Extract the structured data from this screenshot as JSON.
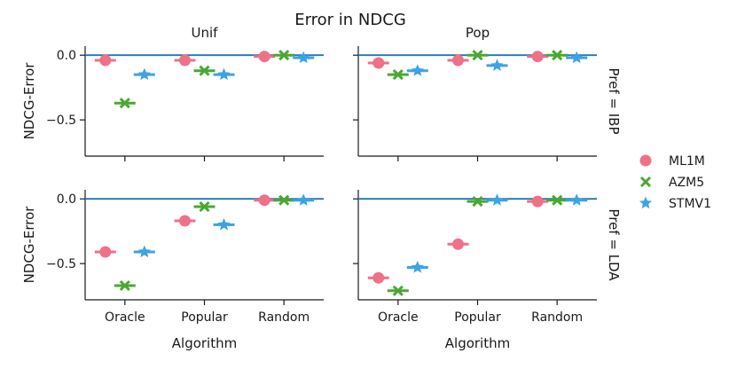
{
  "chart_data": {
    "type": "scatter",
    "title": "Error in NDCG",
    "xlabel": "Algorithm",
    "ylabel": "NDCG-Error",
    "categories": [
      "Oracle",
      "Popular",
      "Random"
    ],
    "ylim": [
      -0.78,
      0.07
    ],
    "yticks": [
      0.0,
      -0.5
    ],
    "ytick_labels": [
      "0.0",
      "−0.5"
    ],
    "columns": [
      "Unif",
      "Pop"
    ],
    "rows": [
      "Pref = IBP",
      "Pref = LDA"
    ],
    "reference_line": 0.0,
    "reference_color": "#1f77b4",
    "legend_position": "right",
    "series": [
      {
        "name": "ML1M",
        "marker": "circle",
        "color": "#f07088"
      },
      {
        "name": "AZM5",
        "marker": "x",
        "color": "#4aa832"
      },
      {
        "name": "STMV1",
        "marker": "star",
        "color": "#3ba3e6"
      }
    ],
    "panels": [
      {
        "row": 0,
        "col": 0,
        "values": {
          "ML1M": [
            -0.04,
            -0.04,
            -0.01
          ],
          "AZM5": [
            -0.37,
            -0.12,
            0.0
          ],
          "STMV1": [
            -0.15,
            -0.15,
            -0.02
          ]
        }
      },
      {
        "row": 0,
        "col": 1,
        "values": {
          "ML1M": [
            -0.06,
            -0.04,
            -0.01
          ],
          "AZM5": [
            -0.15,
            0.0,
            0.0
          ],
          "STMV1": [
            -0.12,
            -0.08,
            -0.02
          ]
        }
      },
      {
        "row": 1,
        "col": 0,
        "values": {
          "ML1M": [
            -0.41,
            -0.17,
            -0.01
          ],
          "AZM5": [
            -0.67,
            -0.06,
            -0.01
          ],
          "STMV1": [
            -0.41,
            -0.2,
            -0.01
          ]
        }
      },
      {
        "row": 1,
        "col": 1,
        "values": {
          "ML1M": [
            -0.61,
            -0.35,
            -0.02
          ],
          "AZM5": [
            -0.71,
            -0.02,
            -0.01
          ],
          "STMV1": [
            -0.53,
            -0.01,
            -0.01
          ]
        }
      }
    ]
  }
}
